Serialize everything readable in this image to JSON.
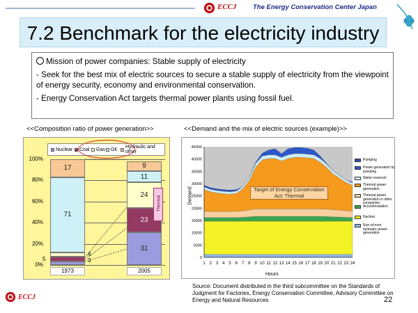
{
  "header": {
    "brand": "ECCJ",
    "org": "The Energy Conservation Center Japan"
  },
  "title": "7.2 Benchmark for the electricity industry",
  "mission": {
    "line1": "Mission of power companies: Stable supply of electricity",
    "line2": "- Seek for the best mix of electric sources to secure a stable supply of electricity from the viewpoint of energy security, economy and environmental conservation.",
    "line3": "- Energy Conservation Act targets thermal power plants using fossil fuel."
  },
  "captions": {
    "left": "<<Composition ratio of power generation>>",
    "right": "<<Demand and the mix of electric sources (example)>>"
  },
  "left_chart": {
    "legend": [
      "Nuclear",
      "Coal",
      "Gas",
      "Oil",
      "Hydraulic and other"
    ],
    "thermal_label": "Thermal",
    "y_ticks": [
      "100%",
      "80%",
      "60%",
      "40%",
      "20%",
      "0%"
    ],
    "bars": [
      "1973",
      "2005"
    ],
    "labels_1973": {
      "nuclear": "3",
      "coal": "5",
      "gas": "4",
      "oil": "71",
      "hydro": "17"
    },
    "labels_2005": {
      "nuclear": "31",
      "coal": "23",
      "gas": "24",
      "oil": "11",
      "hydro": "9"
    }
  },
  "right_chart": {
    "y_ticks": [
      "45000",
      "40000",
      "35000",
      "30000",
      "25000",
      "20000",
      "15000",
      "10000",
      "5000",
      "0"
    ],
    "x_ticks": [
      "1",
      "2",
      "3",
      "4",
      "5",
      "6",
      "7",
      "8",
      "9",
      "10",
      "11",
      "12",
      "13",
      "14",
      "15",
      "16",
      "17",
      "18",
      "19",
      "20",
      "21",
      "22",
      "23",
      "24"
    ],
    "x_title": "Hours",
    "y_title": "Demand",
    "annotation": "Target of Energy Conservation Act: Thermal",
    "legend": [
      "Pumping",
      "Power generation by pumping",
      "Water reservoir",
      "Thermal power generation",
      "Thermal power generation in other companies",
      "Accommodation",
      "Nuclear",
      "Run-of-river hydraulic power generation"
    ]
  },
  "chart_data": [
    {
      "type": "bar",
      "title": "<<Composition ratio of power generation>>",
      "categories": [
        "1973",
        "2005"
      ],
      "series": [
        {
          "name": "Nuclear",
          "values": [
            3,
            31
          ]
        },
        {
          "name": "Coal",
          "values": [
            5,
            23
          ]
        },
        {
          "name": "Gas",
          "values": [
            4,
            24
          ]
        },
        {
          "name": "Oil",
          "values": [
            71,
            11
          ]
        },
        {
          "name": "Hydraulic and other",
          "values": [
            17,
            9
          ]
        }
      ],
      "ylim": [
        0,
        100
      ],
      "colors": {
        "Nuclear": "#9b9bdf",
        "Coal": "#953a62",
        "Gas": "#ffffcc",
        "Oil": "#cdf1f7",
        "Hydraulic and other": "#f8c895"
      }
    },
    {
      "type": "area",
      "title": "<<Demand and the mix of electric sources (example)>>",
      "xlabel": "Hours",
      "ylabel": "Demand",
      "ylim": [
        0,
        45000
      ],
      "x": [
        1,
        2,
        3,
        4,
        5,
        6,
        7,
        8,
        9,
        10,
        11,
        12,
        13,
        14,
        15,
        16,
        17,
        18,
        19,
        20,
        21,
        22,
        23,
        24
      ],
      "series": [
        {
          "name": "Run-of-river hydraulic power generation",
          "values": [
            1200,
            1200,
            1200,
            1200,
            1200,
            1200,
            1200,
            1200,
            1200,
            1200,
            1200,
            1200,
            1200,
            1200,
            1200,
            1200,
            1200,
            1200,
            1200,
            1200,
            1200,
            1200,
            1200,
            1200
          ]
        },
        {
          "name": "Nuclear",
          "values": [
            13500,
            13500,
            13500,
            13500,
            13500,
            13500,
            13500,
            13500,
            13500,
            13500,
            13500,
            13500,
            13500,
            13500,
            13500,
            13500,
            13500,
            13500,
            13500,
            13500,
            13500,
            13500,
            13500,
            13500
          ]
        },
        {
          "name": "Accommodation",
          "values": [
            1500,
            1500,
            1500,
            1500,
            1500,
            1500,
            1600,
            1800,
            2000,
            2000,
            2000,
            2000,
            2000,
            2000,
            2000,
            2000,
            2000,
            2000,
            2000,
            1900,
            1800,
            1700,
            1600,
            1500
          ]
        },
        {
          "name": "Thermal power generation in other companies",
          "values": [
            2500,
            2500,
            2500,
            2500,
            2500,
            2500,
            2600,
            2800,
            3000,
            3000,
            3000,
            3000,
            3000,
            3000,
            3000,
            3000,
            3000,
            3000,
            3000,
            3000,
            2900,
            2800,
            2700,
            2600
          ]
        },
        {
          "name": "Thermal power generation",
          "values": [
            9000,
            8000,
            7500,
            7200,
            7000,
            7300,
            9000,
            12000,
            17000,
            20000,
            20500,
            20500,
            19500,
            20500,
            21000,
            21000,
            20800,
            20500,
            19000,
            17000,
            14500,
            13000,
            11500,
            10500
          ]
        },
        {
          "name": "Water reservoir",
          "values": [
            1000,
            1000,
            1000,
            1000,
            1000,
            1000,
            1000,
            1200,
            1500,
            1500,
            1500,
            1500,
            1500,
            1500,
            1500,
            1500,
            1500,
            1500,
            1500,
            1300,
            1200,
            1100,
            1000,
            1000
          ]
        },
        {
          "name": "Power generation by pumping",
          "values": [
            0,
            0,
            0,
            0,
            0,
            0,
            0,
            0,
            500,
            1200,
            2000,
            2500,
            1500,
            2500,
            2500,
            2500,
            2400,
            2000,
            1000,
            300,
            0,
            0,
            0,
            0
          ]
        },
        {
          "name": "Pumping",
          "values": [
            700,
            700,
            700,
            700,
            700,
            600,
            0,
            0,
            0,
            0,
            0,
            0,
            0,
            0,
            0,
            0,
            0,
            0,
            0,
            0,
            0,
            0,
            0,
            400
          ]
        }
      ]
    }
  ],
  "source": "Source: Document distributed in the third subcommittee on the Standards of Judgment for Factories, Energy Conservation Committee, Advisory Committee on Energy and Natural Resources",
  "page_number": "22"
}
